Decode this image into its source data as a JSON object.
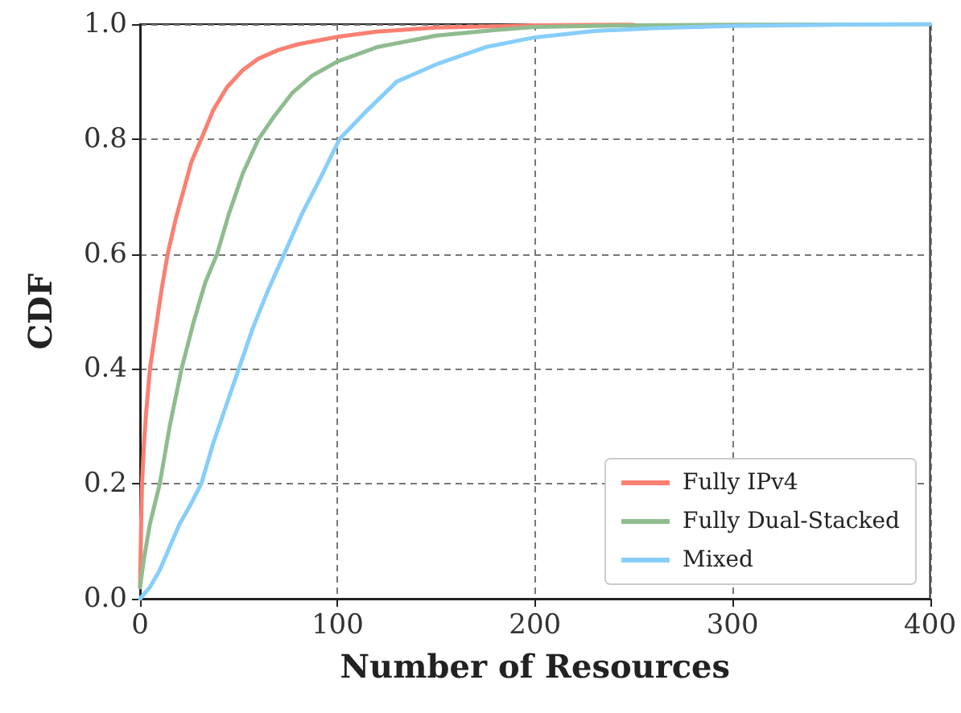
{
  "chart_data": {
    "type": "line",
    "xlabel": "Number of Resources",
    "ylabel": "CDF",
    "xlim": [
      0,
      400
    ],
    "xticks": [
      0,
      100,
      200,
      300,
      400
    ],
    "ylim": [
      0,
      1
    ],
    "yticks": [
      {
        "value": 0,
        "label": "0.0"
      },
      {
        "value": 0.2,
        "label": "0.2"
      },
      {
        "value": 0.4,
        "label": "0.4"
      },
      {
        "value": 0.6,
        "label": "0.6"
      },
      {
        "value": 0.8,
        "label": "0.8"
      },
      {
        "value": 1,
        "label": "1.0"
      }
    ],
    "grid": true,
    "legend": "bottom right",
    "marker": "none",
    "line_style": "solid",
    "series": [
      {
        "name": "Fully IPv4",
        "color": "#fa8072",
        "x": [
          0,
          0.5,
          1,
          2,
          3,
          5,
          8,
          11,
          14,
          18,
          22,
          26,
          31,
          37,
          44,
          52,
          60,
          70,
          80,
          100,
          120,
          150,
          200,
          250
        ],
        "values": [
          0.02,
          0.12,
          0.2,
          0.27,
          0.32,
          0.4,
          0.47,
          0.54,
          0.6,
          0.66,
          0.71,
          0.76,
          0.8,
          0.85,
          0.89,
          0.92,
          0.94,
          0.955,
          0.965,
          0.978,
          0.987,
          0.994,
          0.998,
          0.999
        ]
      },
      {
        "name": "Fully Dual-Stacked",
        "color": "#8fbc8f",
        "x": [
          0,
          2,
          5,
          10,
          15,
          21,
          27,
          33,
          39,
          45,
          52,
          60,
          68,
          77,
          87,
          100,
          120,
          150,
          180,
          200,
          250,
          300,
          400
        ],
        "values": [
          0.02,
          0.07,
          0.13,
          0.2,
          0.3,
          0.4,
          0.48,
          0.55,
          0.6,
          0.67,
          0.74,
          0.8,
          0.84,
          0.88,
          0.91,
          0.935,
          0.96,
          0.98,
          0.99,
          0.995,
          0.998,
          0.999,
          1
        ]
      },
      {
        "name": "Mixed",
        "color": "#87cefa",
        "x": [
          0,
          5,
          10,
          15,
          20,
          25,
          31,
          37,
          44,
          50,
          57,
          64,
          73,
          82,
          91,
          101,
          115,
          130,
          150,
          175,
          200,
          230,
          260,
          300,
          350,
          400
        ],
        "values": [
          0,
          0.02,
          0.05,
          0.09,
          0.13,
          0.16,
          0.2,
          0.27,
          0.34,
          0.4,
          0.47,
          0.53,
          0.6,
          0.67,
          0.73,
          0.8,
          0.85,
          0.9,
          0.93,
          0.96,
          0.977,
          0.988,
          0.993,
          0.997,
          0.999,
          1
        ]
      }
    ]
  }
}
